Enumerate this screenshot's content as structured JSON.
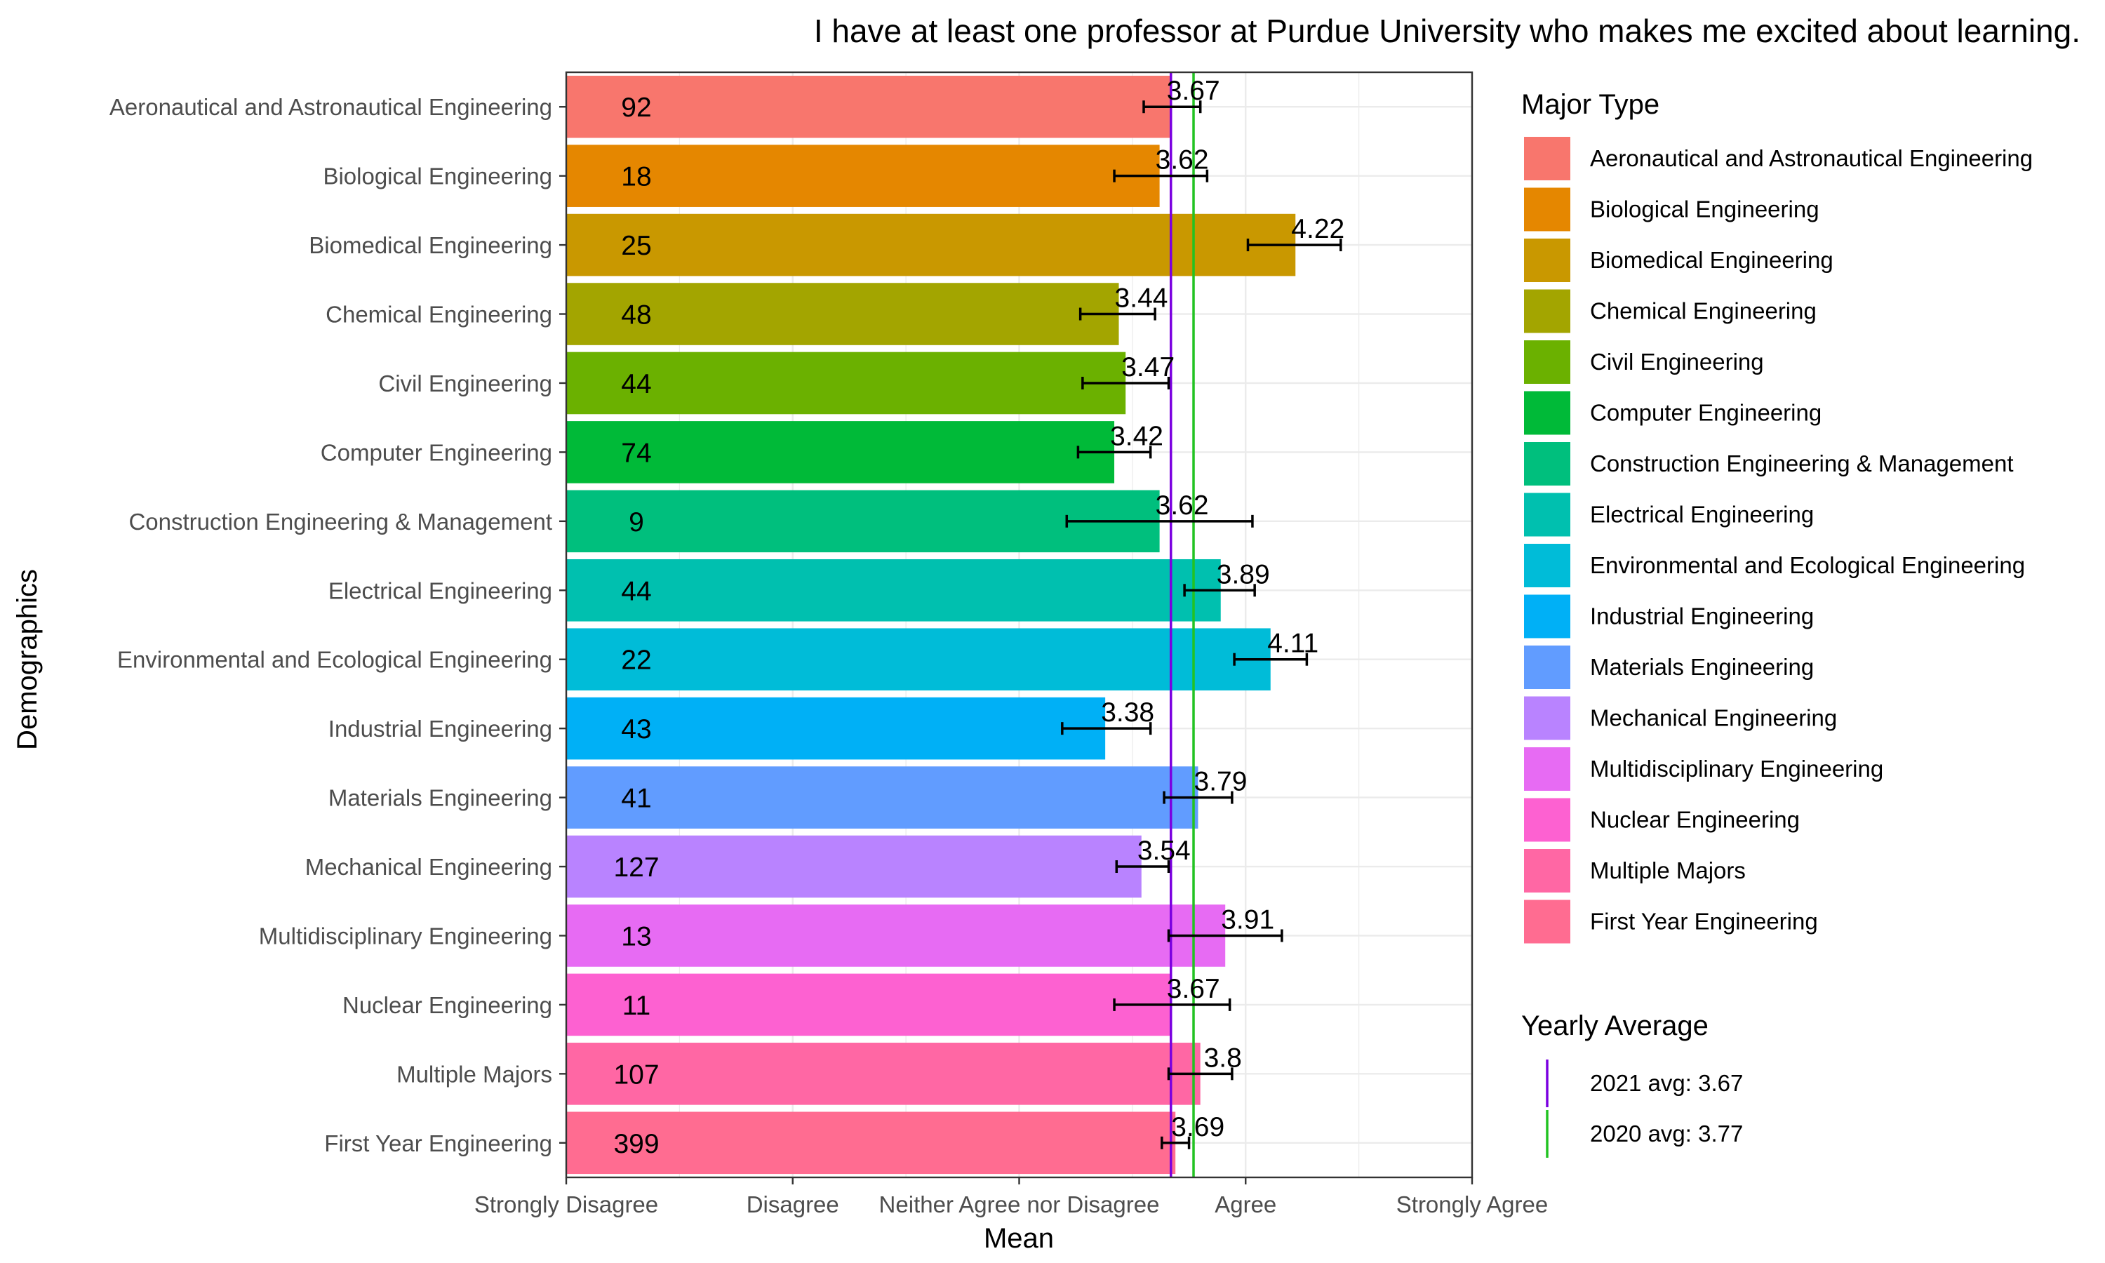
{
  "chart_data": {
    "type": "bar",
    "orientation": "horizontal",
    "title": "I have at least one professor at Purdue University who makes me excited about learning.",
    "xlabel": "Mean",
    "ylabel": "Demographics",
    "xlim": [
      1,
      5
    ],
    "x_ticks": [
      {
        "value": 1,
        "label": "Strongly Disagree"
      },
      {
        "value": 2,
        "label": "Disagree"
      },
      {
        "value": 3,
        "label": "Neither Agree nor Disagree"
      },
      {
        "value": 4,
        "label": "Agree"
      },
      {
        "value": 5,
        "label": "Strongly Agree"
      }
    ],
    "grid": true,
    "categories": [
      "Aeronautical and Astronautical Engineering",
      "Biological Engineering",
      "Biomedical Engineering",
      "Chemical Engineering",
      "Civil Engineering",
      "Computer Engineering",
      "Construction Engineering & Management",
      "Electrical Engineering",
      "Environmental and Ecological Engineering",
      "Industrial Engineering",
      "Materials Engineering",
      "Mechanical Engineering",
      "Multidisciplinary Engineering",
      "Nuclear Engineering",
      "Multiple Majors",
      "First Year Engineering"
    ],
    "values": [
      3.67,
      3.62,
      4.22,
      3.44,
      3.47,
      3.42,
      3.62,
      3.89,
      4.11,
      3.38,
      3.79,
      3.54,
      3.91,
      3.67,
      3.8,
      3.69
    ],
    "value_labels": [
      "3.67",
      "3.62",
      "4.22",
      "3.44",
      "3.47",
      "3.42",
      "3.62",
      "3.89",
      "4.11",
      "3.38",
      "3.79",
      "3.54",
      "3.91",
      "3.67",
      "3.8",
      "3.69"
    ],
    "counts": [
      "92",
      "18",
      "25",
      "48",
      "44",
      "74",
      "9",
      "44",
      "22",
      "43",
      "41",
      "127",
      "13",
      "11",
      "107",
      "399"
    ],
    "error_low": [
      3.55,
      3.42,
      4.01,
      3.27,
      3.28,
      3.26,
      3.21,
      3.73,
      3.95,
      3.19,
      3.64,
      3.43,
      3.66,
      3.42,
      3.66,
      3.63
    ],
    "error_high": [
      3.8,
      3.83,
      4.42,
      3.6,
      3.66,
      3.58,
      4.03,
      4.04,
      4.27,
      3.58,
      3.94,
      3.66,
      4.16,
      3.93,
      3.94,
      3.75
    ],
    "colors": [
      "#F8766D",
      "#E58700",
      "#C99800",
      "#A3A500",
      "#6BB100",
      "#00BA38",
      "#00BF7D",
      "#00C0AF",
      "#00BCD8",
      "#00B0F6",
      "#619CFF",
      "#B983FF",
      "#E76BF3",
      "#FD61D1",
      "#FF67A4",
      "#FF6C91"
    ],
    "legend": {
      "title": "Major Type",
      "position": "right",
      "items": [
        "Aeronautical and Astronautical Engineering",
        "Biological Engineering",
        "Biomedical Engineering",
        "Chemical Engineering",
        "Civil Engineering",
        "Computer Engineering",
        "Construction Engineering & Management",
        "Electrical Engineering",
        "Environmental and Ecological Engineering",
        "Industrial Engineering",
        "Materials Engineering",
        "Mechanical Engineering",
        "Multidisciplinary Engineering",
        "Nuclear Engineering",
        "Multiple Majors",
        "First Year Engineering"
      ]
    },
    "reference_lines": {
      "title": "Yearly Average",
      "lines": [
        {
          "label": "2021 avg: 3.67",
          "value": 3.67,
          "color": "#7B00E0"
        },
        {
          "label": "2020 avg: 3.77",
          "value": 3.77,
          "color": "#22C322"
        }
      ]
    }
  }
}
